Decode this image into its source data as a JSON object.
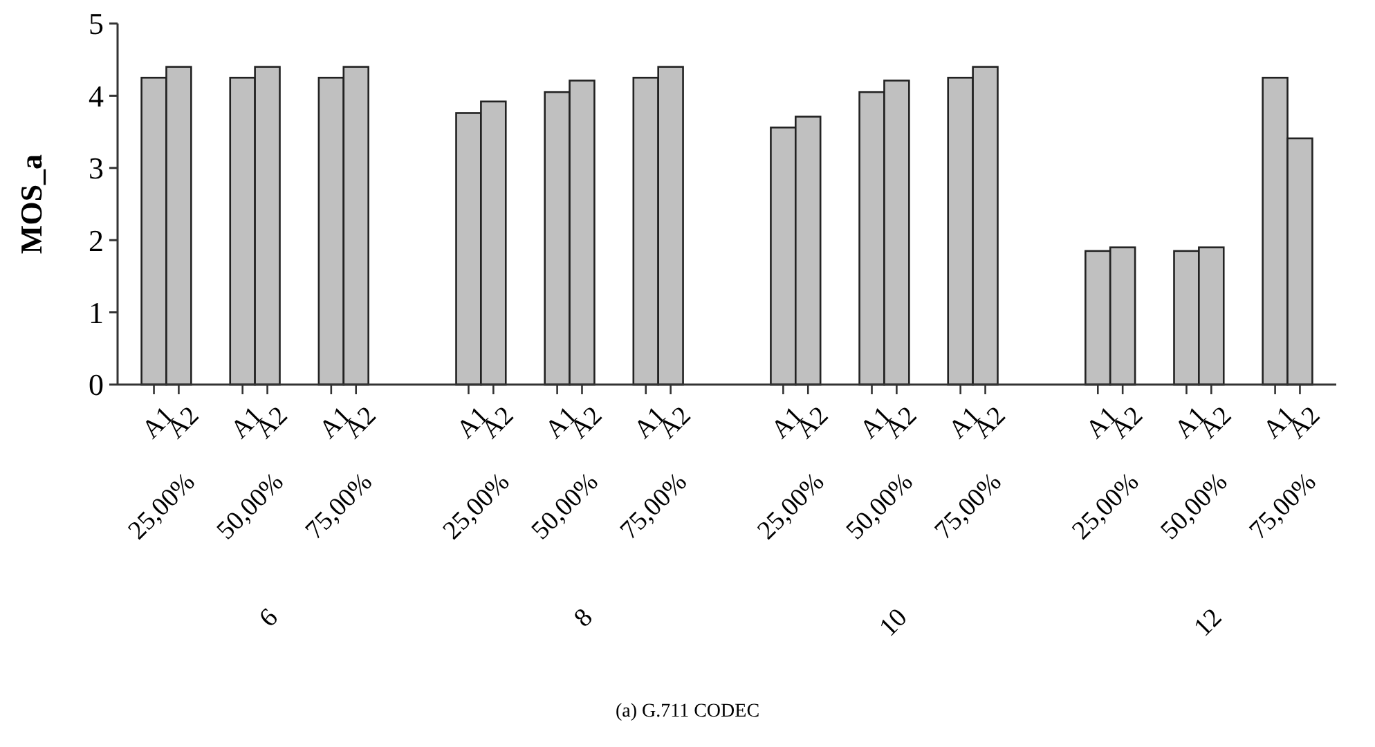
{
  "chart_data": {
    "type": "bar",
    "title": "(a)  G.711 CODEC",
    "ylabel": "MOS_a",
    "categories": [
      "25,00%",
      "50,00%",
      "75,00%",
      "25,00%",
      "50,00%",
      "75,00%",
      "25,00%",
      "50,00%",
      "75,00%",
      "25,00%",
      "50,00%",
      "75,00%"
    ],
    "series": [
      {
        "name": "A1",
        "color": "#c0c0c0",
        "values": [
          4.25,
          4.25,
          4.25,
          3.76,
          4.05,
          4.25,
          3.56,
          4.05,
          4.25,
          1.85,
          1.85,
          4.25
        ]
      },
      {
        "name": "A2",
        "color": "#c0c0c0",
        "values": [
          4.4,
          4.4,
          4.4,
          3.92,
          4.21,
          4.4,
          3.71,
          4.21,
          4.4,
          1.9,
          1.9,
          3.41
        ]
      }
    ],
    "annotations": [
      "6",
      "8",
      "10",
      "12"
    ],
    "ylim": [
      0,
      5
    ],
    "yticks": [
      0,
      1,
      2,
      3,
      4,
      5
    ],
    "grid": false,
    "legend": false
  }
}
